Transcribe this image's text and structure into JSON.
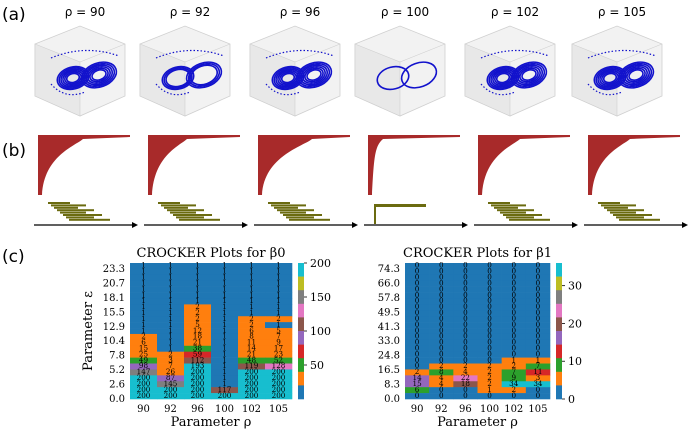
{
  "panels": {
    "a": "(a)",
    "b": "(b)",
    "c": "(c)"
  },
  "rho_titles": [
    "ρ = 90",
    "ρ = 92",
    "ρ = 96",
    "ρ = 100",
    "ρ = 102",
    "ρ = 105"
  ],
  "colors": {
    "attractor": "#1212cc",
    "persistence_b0": "#a82a2a",
    "barcode_b1": "#6b6b10",
    "heat_base": "#1f77b4"
  },
  "chart_data": [
    {
      "type": "heatmap",
      "title": "CROCKER Plots for β0",
      "xlabel": "Parameter ρ",
      "ylabel": "Parameter ε",
      "x": [
        "90",
        "92",
        "96",
        "100",
        "102",
        "105"
      ],
      "y": [
        "23.3",
        "20.7",
        "18.1",
        "15.5",
        "12.9",
        "10.4",
        "7.8",
        "5.2",
        "2.6",
        "0.0"
      ],
      "colorbar_ticks": [
        "200",
        "150",
        "100",
        "50"
      ],
      "values": [
        [
          1,
          1,
          1,
          1,
          1,
          1
        ],
        [
          1,
          1,
          1,
          1,
          1,
          1
        ],
        [
          1,
          1,
          1,
          1,
          1,
          1
        ],
        [
          1,
          1,
          1,
          1,
          1,
          1
        ],
        [
          1,
          1,
          1,
          1,
          1,
          1
        ],
        [
          1,
          1,
          1,
          1,
          1,
          1
        ],
        [
          1,
          1,
          1,
          1,
          1,
          1
        ],
        [
          1,
          1,
          2,
          1,
          1,
          1
        ],
        [
          1,
          1,
          2,
          1,
          1,
          1
        ],
        [
          1,
          1,
          2,
          1,
          2,
          2
        ],
        [
          1,
          1,
          5,
          1,
          2,
          1
        ],
        [
          1,
          1,
          12,
          1,
          6,
          5
        ],
        [
          2,
          1,
          18,
          1,
          8,
          7
        ],
        [
          6,
          1,
          21,
          1,
          11,
          9
        ],
        [
          15,
          1,
          38,
          1,
          14,
          17
        ],
        [
          25,
          2,
          59,
          1,
          21,
          23
        ],
        [
          49,
          3,
          112,
          1,
          48,
          52
        ],
        [
          98,
          7,
          193,
          1,
          119,
          128
        ],
        [
          147,
          26,
          200,
          1,
          200,
          200
        ],
        [
          200,
          87,
          200,
          1,
          200,
          200
        ],
        [
          200,
          145,
          200,
          1,
          200,
          200
        ],
        [
          200,
          200,
          200,
          117,
          200,
          200
        ],
        [
          200,
          200,
          200,
          200,
          200,
          200
        ]
      ]
    },
    {
      "type": "heatmap",
      "title": "CROCKER Plots for β1",
      "xlabel": "Parameter ρ",
      "x": [
        "90",
        "92",
        "96",
        "100",
        "102",
        "105"
      ],
      "y": [
        "74.3",
        "66.0",
        "57.8",
        "49.5",
        "41.3",
        "33.0",
        "24.8",
        "16.5",
        "8.3",
        "0.0"
      ],
      "colorbar_ticks": [
        "30",
        "20",
        "10",
        "0"
      ],
      "values": [
        [
          0,
          0,
          0,
          0,
          0,
          0
        ],
        [
          0,
          0,
          0,
          0,
          0,
          0
        ],
        [
          0,
          0,
          0,
          0,
          0,
          0
        ],
        [
          0,
          0,
          0,
          0,
          0,
          0
        ],
        [
          0,
          0,
          0,
          0,
          0,
          0
        ],
        [
          0,
          0,
          0,
          0,
          0,
          0
        ],
        [
          0,
          0,
          0,
          0,
          0,
          0
        ],
        [
          0,
          0,
          0,
          0,
          0,
          0
        ],
        [
          0,
          0,
          0,
          0,
          0,
          0
        ],
        [
          0,
          0,
          0,
          0,
          0,
          0
        ],
        [
          0,
          0,
          0,
          0,
          0,
          0
        ],
        [
          0,
          0,
          0,
          0,
          0,
          0
        ],
        [
          0,
          0,
          0,
          0,
          0,
          0
        ],
        [
          0,
          0,
          0,
          0,
          0,
          0
        ],
        [
          0,
          0,
          0,
          0,
          0,
          0
        ],
        [
          0,
          0,
          0,
          0,
          0,
          0
        ],
        [
          0,
          0,
          0,
          0,
          1,
          1
        ],
        [
          0,
          2,
          2,
          2,
          2,
          7
        ],
        [
          2,
          8,
          4,
          2,
          7,
          11
        ],
        [
          14,
          4,
          22,
          2,
          9,
          3
        ],
        [
          15,
          4,
          18,
          2,
          34,
          34
        ],
        [
          6,
          0,
          0,
          1,
          2,
          0
        ],
        [
          0,
          0,
          0,
          0,
          0,
          0
        ]
      ]
    }
  ]
}
